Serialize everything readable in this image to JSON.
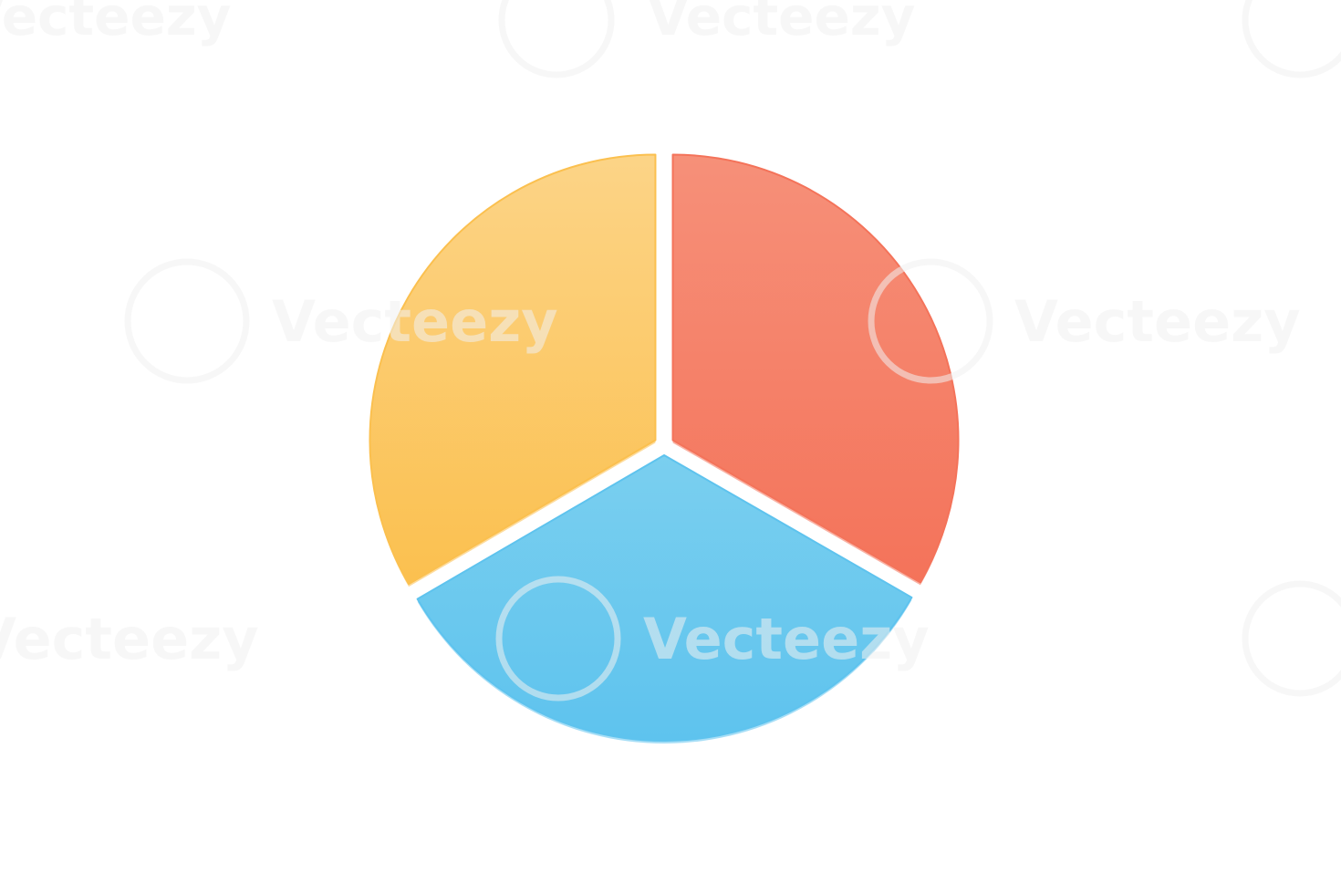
{
  "chart_data": {
    "type": "pie",
    "title": "",
    "start_direction": "12 o'clock, clockwise",
    "slices": [
      {
        "value": 33.3,
        "color": "#f4735a",
        "highlight": "#f69079"
      },
      {
        "value": 33.3,
        "color": "#5ec3ee",
        "highlight": "#7acfef"
      },
      {
        "value": 33.4,
        "color": "#fbc04f",
        "highlight": "#fcd487"
      }
    ],
    "legend": "none",
    "exploded": true
  },
  "watermark": {
    "text": "Vecteezy",
    "icon": "vecteezy-logo-icon"
  }
}
